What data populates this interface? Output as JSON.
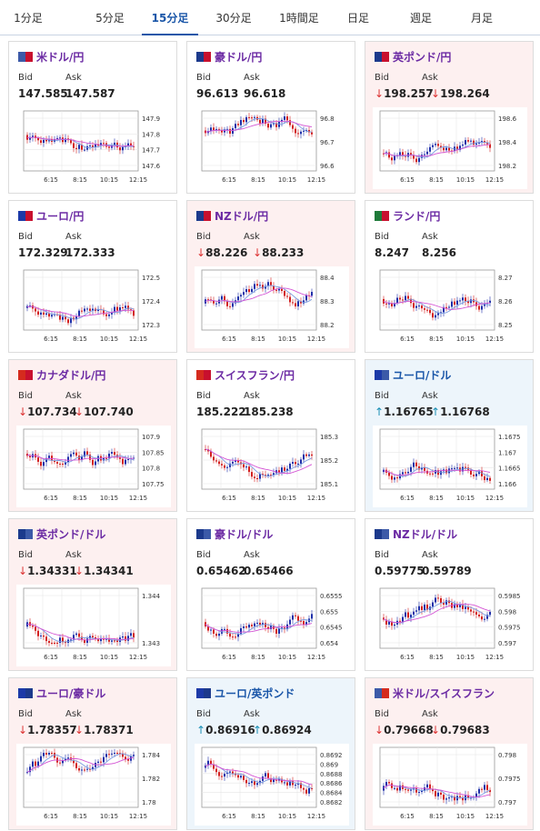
{
  "tabs": [
    "1分足",
    "5分足",
    "15分足",
    "30分足",
    "1時間足",
    "日足",
    "週足",
    "月足"
  ],
  "active_tab": 2,
  "x_ticks": [
    "6:15",
    "8:15",
    "10:15",
    "12:15"
  ],
  "labels": {
    "bid": "Bid",
    "ask": "Ask"
  },
  "cards": [
    {
      "name": "米ドル/円",
      "trend": "none",
      "bid": "147.585",
      "ask": "147.587",
      "flags": [
        "#3c5aa8",
        "#c8102e"
      ],
      "yticks": [
        "147.9",
        "147.8",
        "147.7",
        "147.6"
      ]
    },
    {
      "name": "豪ドル/円",
      "trend": "none",
      "bid": "96.613",
      "ask": "96.618",
      "flags": [
        "#1c3a8c",
        "#c8102e"
      ],
      "yticks": [
        "96.8",
        "96.7",
        "96.6"
      ]
    },
    {
      "name": "英ポンド/円",
      "trend": "down",
      "bid": "198.257",
      "ask": "198.264",
      "flags": [
        "#1c3a8c",
        "#c8102e"
      ],
      "yticks": [
        "198.6",
        "198.4",
        "198.2"
      ]
    },
    {
      "name": "ユーロ/円",
      "trend": "none",
      "bid": "172.329",
      "ask": "172.333",
      "flags": [
        "#1c3aa8",
        "#c8102e"
      ],
      "yticks": [
        "172.5",
        "172.4",
        "172.3"
      ]
    },
    {
      "name": "NZドル/円",
      "trend": "down",
      "bid": "88.226",
      "ask": "88.233",
      "flags": [
        "#1c3a8c",
        "#c8102e"
      ],
      "yticks": [
        "88.4",
        "88.3",
        "88.2"
      ]
    },
    {
      "name": "ランド/円",
      "trend": "none",
      "bid": "8.247",
      "ask": "8.256",
      "flags": [
        "#1f7a3a",
        "#c8102e"
      ],
      "yticks": [
        "8.27",
        "8.26",
        "8.25"
      ]
    },
    {
      "name": "カナダドル/円",
      "trend": "down",
      "bid": "107.734",
      "ask": "107.740",
      "flags": [
        "#d52b1e",
        "#c8102e"
      ],
      "yticks": [
        "107.9",
        "107.85",
        "107.8",
        "107.75"
      ]
    },
    {
      "name": "スイスフラン/円",
      "trend": "none",
      "bid": "185.222",
      "ask": "185.238",
      "flags": [
        "#d52b1e",
        "#c8102e"
      ],
      "yticks": [
        "185.3",
        "185.2",
        "185.1"
      ]
    },
    {
      "name": "ユーロ/ドル",
      "trend": "up",
      "bid": "1.16765",
      "ask": "1.16768",
      "flags": [
        "#1c3aa8",
        "#3c5aa8"
      ],
      "yticks": [
        "1.1675",
        "1.167",
        "1.1665",
        "1.166"
      ]
    },
    {
      "name": "英ポンド/ドル",
      "trend": "down",
      "bid": "1.34331",
      "ask": "1.34341",
      "flags": [
        "#1c3a8c",
        "#3c5aa8"
      ],
      "yticks": [
        "1.344",
        "1.343"
      ]
    },
    {
      "name": "豪ドル/ドル",
      "trend": "none",
      "bid": "0.65462",
      "ask": "0.65466",
      "flags": [
        "#1c3a8c",
        "#3c5aa8"
      ],
      "yticks": [
        "0.6555",
        "0.655",
        "0.6545",
        "0.654"
      ]
    },
    {
      "name": "NZドル/ドル",
      "trend": "none",
      "bid": "0.59775",
      "ask": "0.59789",
      "flags": [
        "#1c3a8c",
        "#3c5aa8"
      ],
      "yticks": [
        "0.5985",
        "0.598",
        "0.5975",
        "0.597"
      ]
    },
    {
      "name": "ユーロ/豪ドル",
      "trend": "down",
      "bid": "1.78357",
      "ask": "1.78371",
      "flags": [
        "#1c3aa8",
        "#1c3a8c"
      ],
      "yticks": [
        "1.784",
        "1.782",
        "1.78"
      ]
    },
    {
      "name": "ユーロ/英ポンド",
      "trend": "up",
      "bid": "0.86916",
      "ask": "0.86924",
      "flags": [
        "#1c3aa8",
        "#1c3a8c"
      ],
      "yticks": [
        "0.8692",
        "0.869",
        "0.8688",
        "0.8686",
        "0.8684",
        "0.8682"
      ]
    },
    {
      "name": "米ドル/スイスフラン",
      "trend": "down",
      "bid": "0.79668",
      "ask": "0.79683",
      "flags": [
        "#3c5aa8",
        "#d52b1e"
      ],
      "yticks": [
        "0.798",
        "0.7975",
        "0.797"
      ]
    }
  ]
}
